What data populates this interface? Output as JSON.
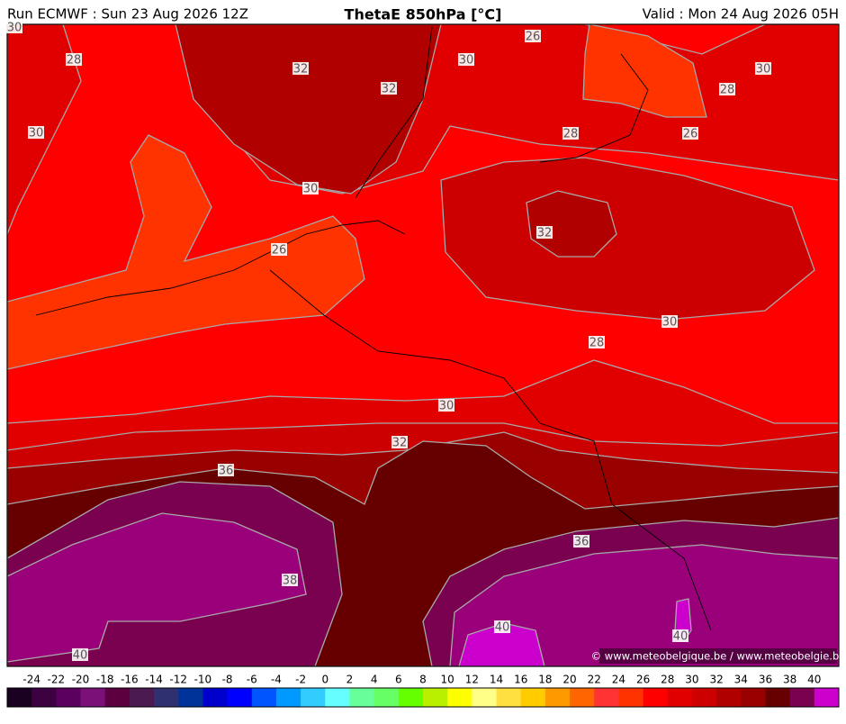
{
  "header": {
    "run": "Run ECMWF : Sun 23 Aug 2026 12Z",
    "title": "ThetaE 850hPa [°C]",
    "valid": "Valid : Mon 24 Aug 2026 05H"
  },
  "contour_labels": [
    30,
    28,
    32,
    32,
    30,
    26,
    30,
    28,
    30,
    28,
    26,
    30,
    32,
    26,
    30,
    28,
    30,
    32,
    36,
    36,
    38,
    40,
    40,
    40
  ],
  "copyright": "© www.meteobelgique.be / www.meteobelgie.be",
  "colorbar": {
    "labels": [
      -24,
      -22,
      -20,
      -18,
      -16,
      -14,
      -12,
      -10,
      -8,
      -6,
      -4,
      -2,
      0,
      2,
      4,
      6,
      8,
      10,
      12,
      14,
      16,
      18,
      20,
      22,
      24,
      26,
      28,
      30,
      32,
      34,
      36,
      38,
      40
    ],
    "colors": [
      "#1a0021",
      "#3d0040",
      "#5c005e",
      "#7a1078",
      "#5c0040",
      "#4a1a50",
      "#2e3070",
      "#00339a",
      "#0000cc",
      "#0000ff",
      "#0055ff",
      "#0099ff",
      "#33ccff",
      "#66ffff",
      "#66ff99",
      "#66ff66",
      "#66ff00",
      "#b8f000",
      "#ffff00",
      "#ffff88",
      "#ffe040",
      "#ffcc00",
      "#ff9900",
      "#ff6600",
      "#ff3333",
      "#ff3300",
      "#ff0000",
      "#e00000",
      "#cc0000",
      "#b00000",
      "#990000",
      "#660000",
      "#7a0050",
      "#cc00cc"
    ]
  }
}
